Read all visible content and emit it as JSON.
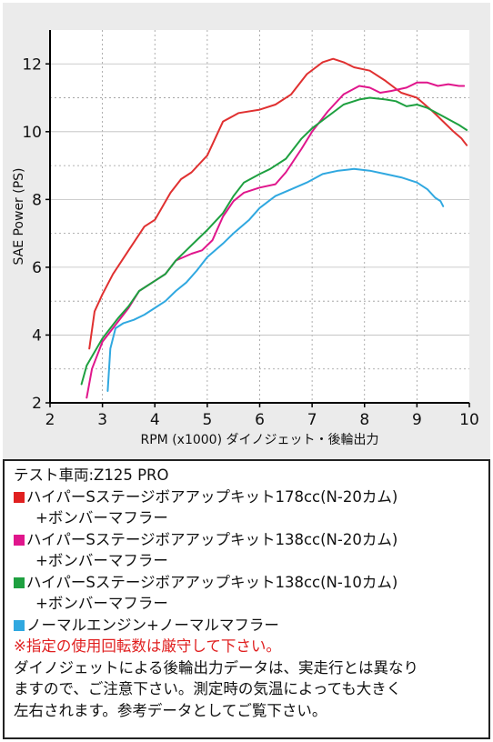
{
  "chart_data": {
    "type": "line",
    "xlabel": "RPM (x1000) ダイノジェット・後輪出力",
    "ylabel": "SAE Power (PS)",
    "xlim": [
      2,
      10
    ],
    "ylim": [
      2,
      13
    ],
    "x_ticks": [
      2,
      3,
      4,
      5,
      6,
      7,
      8,
      9,
      10
    ],
    "y_ticks": [
      2,
      4,
      6,
      8,
      10,
      12
    ],
    "grid": true,
    "series": [
      {
        "color": "#e03030",
        "points": [
          [
            2.75,
            3.6
          ],
          [
            2.85,
            4.7
          ],
          [
            3,
            5.2
          ],
          [
            3.2,
            5.8
          ],
          [
            3.5,
            6.5
          ],
          [
            3.8,
            7.2
          ],
          [
            4,
            7.4
          ],
          [
            4.3,
            8.2
          ],
          [
            4.5,
            8.6
          ],
          [
            4.7,
            8.8
          ],
          [
            5,
            9.3
          ],
          [
            5.3,
            10.3
          ],
          [
            5.6,
            10.55
          ],
          [
            6,
            10.65
          ],
          [
            6.3,
            10.8
          ],
          [
            6.6,
            11.1
          ],
          [
            6.9,
            11.7
          ],
          [
            7.2,
            12.05
          ],
          [
            7.4,
            12.15
          ],
          [
            7.6,
            12.05
          ],
          [
            7.8,
            11.9
          ],
          [
            8.1,
            11.8
          ],
          [
            8.4,
            11.5
          ],
          [
            8.7,
            11.15
          ],
          [
            9,
            11.0
          ],
          [
            9.3,
            10.6
          ],
          [
            9.5,
            10.3
          ],
          [
            9.7,
            10.0
          ],
          [
            9.85,
            9.8
          ],
          [
            9.95,
            9.6
          ]
        ]
      },
      {
        "color": "#e0168c",
        "points": [
          [
            2.7,
            2.15
          ],
          [
            2.8,
            3.0
          ],
          [
            3,
            3.8
          ],
          [
            3.3,
            4.4
          ],
          [
            3.5,
            4.8
          ],
          [
            3.7,
            5.3
          ],
          [
            4,
            5.6
          ],
          [
            4.2,
            5.8
          ],
          [
            4.4,
            6.2
          ],
          [
            4.7,
            6.4
          ],
          [
            4.9,
            6.5
          ],
          [
            5.1,
            6.8
          ],
          [
            5.3,
            7.5
          ],
          [
            5.5,
            7.95
          ],
          [
            5.7,
            8.2
          ],
          [
            6,
            8.35
          ],
          [
            6.3,
            8.45
          ],
          [
            6.5,
            8.8
          ],
          [
            6.8,
            9.5
          ],
          [
            7,
            10.0
          ],
          [
            7.3,
            10.6
          ],
          [
            7.6,
            11.1
          ],
          [
            7.9,
            11.35
          ],
          [
            8.1,
            11.3
          ],
          [
            8.3,
            11.15
          ],
          [
            8.5,
            11.2
          ],
          [
            8.8,
            11.3
          ],
          [
            9,
            11.45
          ],
          [
            9.2,
            11.45
          ],
          [
            9.4,
            11.35
          ],
          [
            9.6,
            11.4
          ],
          [
            9.8,
            11.35
          ],
          [
            9.9,
            11.35
          ]
        ]
      },
      {
        "color": "#1ea040",
        "points": [
          [
            2.6,
            2.55
          ],
          [
            2.7,
            3.1
          ],
          [
            3,
            3.9
          ],
          [
            3.3,
            4.5
          ],
          [
            3.5,
            4.85
          ],
          [
            3.7,
            5.3
          ],
          [
            4,
            5.6
          ],
          [
            4.2,
            5.8
          ],
          [
            4.4,
            6.2
          ],
          [
            4.6,
            6.5
          ],
          [
            4.8,
            6.8
          ],
          [
            5,
            7.1
          ],
          [
            5.3,
            7.6
          ],
          [
            5.5,
            8.1
          ],
          [
            5.7,
            8.5
          ],
          [
            6,
            8.75
          ],
          [
            6.2,
            8.9
          ],
          [
            6.5,
            9.2
          ],
          [
            6.8,
            9.8
          ],
          [
            7,
            10.1
          ],
          [
            7.3,
            10.45
          ],
          [
            7.6,
            10.8
          ],
          [
            7.9,
            10.95
          ],
          [
            8.1,
            11.0
          ],
          [
            8.4,
            10.95
          ],
          [
            8.6,
            10.9
          ],
          [
            8.8,
            10.75
          ],
          [
            9,
            10.8
          ],
          [
            9.2,
            10.7
          ],
          [
            9.5,
            10.45
          ],
          [
            9.8,
            10.2
          ],
          [
            9.95,
            10.05
          ]
        ]
      },
      {
        "color": "#30a8e0",
        "points": [
          [
            3.1,
            2.35
          ],
          [
            3.15,
            3.6
          ],
          [
            3.25,
            4.2
          ],
          [
            3.4,
            4.35
          ],
          [
            3.6,
            4.45
          ],
          [
            3.8,
            4.6
          ],
          [
            4,
            4.8
          ],
          [
            4.2,
            5.0
          ],
          [
            4.4,
            5.3
          ],
          [
            4.6,
            5.55
          ],
          [
            4.8,
            5.9
          ],
          [
            5,
            6.3
          ],
          [
            5.3,
            6.7
          ],
          [
            5.5,
            7.0
          ],
          [
            5.8,
            7.4
          ],
          [
            6,
            7.75
          ],
          [
            6.3,
            8.1
          ],
          [
            6.6,
            8.3
          ],
          [
            6.9,
            8.5
          ],
          [
            7.2,
            8.75
          ],
          [
            7.5,
            8.85
          ],
          [
            7.8,
            8.9
          ],
          [
            8.1,
            8.85
          ],
          [
            8.4,
            8.75
          ],
          [
            8.7,
            8.65
          ],
          [
            9,
            8.5
          ],
          [
            9.2,
            8.3
          ],
          [
            9.35,
            8.05
          ],
          [
            9.45,
            7.95
          ],
          [
            9.5,
            7.8
          ]
        ]
      }
    ]
  },
  "info": {
    "vehicle": "テスト車両:Z125 PRO",
    "legend": [
      {
        "color": "#e02020",
        "line1": "ハイパーSステージボアアップキット178cc(N-20カム)",
        "line2": "+ボンバーマフラー"
      },
      {
        "color": "#e0168c",
        "line1": "ハイパーSステージボアアップキット138cc(N-20カム)",
        "line2": "+ボンバーマフラー"
      },
      {
        "color": "#1ea040",
        "line1": "ハイパーSステージボアアップキット138cc(N-10カム)",
        "line2": "+ボンバーマフラー"
      },
      {
        "color": "#30a8e0",
        "line1": "ノーマルエンジン+ノーマルマフラー",
        "line2": ""
      }
    ],
    "warning": "※指定の使用回転数は厳守して下さい。",
    "note_lines": [
      "ダイノジェットによる後輪出力データは、実走行とは異なり",
      "ますので、ご注意下さい。測定時の気温によっても大きく",
      "左右されます。参考データとしてご覧下さい。"
    ]
  }
}
